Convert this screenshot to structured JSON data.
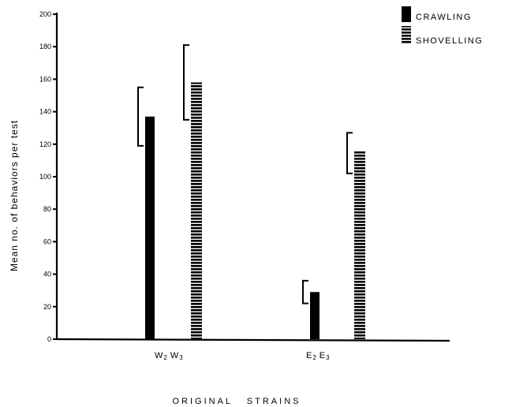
{
  "chart_data": {
    "type": "bar",
    "title": "",
    "xlabel": "ORIGINAL   STRAINS",
    "ylabel": "Mean  no.  of  behaviors  per  test",
    "ylim": [
      0,
      200
    ],
    "yticks": [
      0,
      20,
      40,
      60,
      80,
      100,
      120,
      140,
      160,
      180,
      200
    ],
    "grid": false,
    "legend_position": "top-right",
    "categories": [
      {
        "main": "W",
        "sub1": "2",
        "main2": "W",
        "sub2": "3"
      },
      {
        "main": "E",
        "sub1": "2",
        "main2": "E",
        "sub2": "3"
      }
    ],
    "series": [
      {
        "name": "CRAWLING",
        "pattern": "solid",
        "color": "#000000",
        "values": [
          137,
          29
        ],
        "error_upper": [
          155,
          36
        ],
        "error_lower": [
          119,
          22
        ]
      },
      {
        "name": "SHOVELLING",
        "pattern": "horizontal-stripes",
        "color": "#000000",
        "values": [
          158,
          116
        ],
        "error_upper": [
          181,
          127
        ],
        "error_lower": [
          135,
          102
        ]
      }
    ]
  }
}
